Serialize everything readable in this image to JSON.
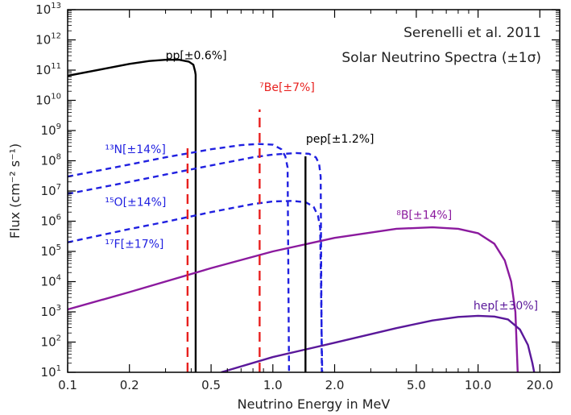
{
  "chart_data": {
    "type": "line",
    "title_lines": [
      "Serenelli et al. 2011",
      "Solar Neutrino Spectra (±1σ)"
    ],
    "xlabel": "Neutrino Energy in MeV",
    "ylabel": "Flux (cm⁻² s⁻¹)",
    "x_scale": "log",
    "y_scale": "log",
    "xlim": [
      0.1,
      25
    ],
    "ylim": [
      10,
      10000000000000.0
    ],
    "x_ticks": [
      {
        "value": 0.1,
        "label": "0.1"
      },
      {
        "value": 0.2,
        "label": "0.2"
      },
      {
        "value": 0.5,
        "label": "0.5"
      },
      {
        "value": 1.0,
        "label": "1.0"
      },
      {
        "value": 2.0,
        "label": "2.0"
      },
      {
        "value": 5.0,
        "label": "5.0"
      },
      {
        "value": 10.0,
        "label": "10.0"
      },
      {
        "value": 20.0,
        "label": "20.0"
      }
    ],
    "y_tick_exponents": [
      1,
      2,
      3,
      4,
      5,
      6,
      7,
      8,
      9,
      10,
      11,
      12,
      13
    ],
    "series": [
      {
        "name": "pp[±0.6%]",
        "color": "#000000",
        "dash": "solid",
        "points": [
          [
            0.1,
            65000000000.0
          ],
          [
            0.15,
            110000000000.0
          ],
          [
            0.2,
            160000000000.0
          ],
          [
            0.25,
            200000000000.0
          ],
          [
            0.3,
            220000000000.0
          ],
          [
            0.35,
            220000000000.0
          ],
          [
            0.39,
            190000000000.0
          ],
          [
            0.41,
            150000000000.0
          ],
          [
            0.418,
            90000000000.0
          ],
          [
            0.4205,
            70000000000.0
          ],
          [
            0.4205,
            10
          ]
        ]
      },
      {
        "name": "¹³N[±14%]",
        "color": "#2020e0",
        "dash": "dashed",
        "points": [
          [
            0.1,
            30000000.0
          ],
          [
            0.2,
            75000000.0
          ],
          [
            0.3,
            130000000.0
          ],
          [
            0.5,
            240000000.0
          ],
          [
            0.7,
            330000000.0
          ],
          [
            0.85,
            360000000.0
          ],
          [
            1.0,
            340000000.0
          ],
          [
            1.1,
            240000000.0
          ],
          [
            1.15,
            140000000.0
          ],
          [
            1.18,
            60000000.0
          ],
          [
            1.199,
            10
          ]
        ]
      },
      {
        "name": "¹⁵O[±14%]",
        "color": "#2020e0",
        "dash": "dashed",
        "points": [
          [
            0.1,
            8000000.0
          ],
          [
            0.2,
            20000000.0
          ],
          [
            0.3,
            35000000.0
          ],
          [
            0.5,
            70000000.0
          ],
          [
            0.8,
            130000000.0
          ],
          [
            1.0,
            160000000.0
          ],
          [
            1.3,
            180000000.0
          ],
          [
            1.5,
            170000000.0
          ],
          [
            1.62,
            130000000.0
          ],
          [
            1.68,
            80000000.0
          ],
          [
            1.71,
            30000000.0
          ],
          [
            1.732,
            10
          ]
        ]
      },
      {
        "name": "¹⁷F[±17%]",
        "color": "#2020e0",
        "dash": "dashed",
        "points": [
          [
            0.1,
            200000.0
          ],
          [
            0.2,
            550000.0
          ],
          [
            0.3,
            950000.0
          ],
          [
            0.5,
            2000000.0
          ],
          [
            0.8,
            3700000.0
          ],
          [
            1.0,
            4500000.0
          ],
          [
            1.25,
            4700000.0
          ],
          [
            1.45,
            4200000.0
          ],
          [
            1.58,
            3000000.0
          ],
          [
            1.66,
            1500000.0
          ],
          [
            1.7,
            600000.0
          ],
          [
            1.74,
            10
          ]
        ]
      },
      {
        "name": "⁸B[±14%]",
        "color": "#8b1a9e",
        "dash": "solid",
        "points": [
          [
            0.1,
            1200.0
          ],
          [
            0.2,
            4500.0
          ],
          [
            0.5,
            28000.0
          ],
          [
            1.0,
            100000.0
          ],
          [
            2.0,
            280000.0
          ],
          [
            4.0,
            560000.0
          ],
          [
            6.0,
            630000.0
          ],
          [
            8.0,
            560000.0
          ],
          [
            10.0,
            400000.0
          ],
          [
            12.0,
            180000.0
          ],
          [
            13.5,
            50000.0
          ],
          [
            14.5,
            10000.0
          ],
          [
            15.2,
            1000.0
          ],
          [
            15.6,
            10
          ]
        ]
      },
      {
        "name": "hep[±30%]",
        "color": "#5a189a",
        "dash": "solid",
        "points": [
          [
            0.56,
            10
          ],
          [
            1.0,
            32
          ],
          [
            2.0,
            95
          ],
          [
            4.0,
            290
          ],
          [
            6.0,
            520
          ],
          [
            8.0,
            680
          ],
          [
            10.0,
            740
          ],
          [
            12.0,
            700
          ],
          [
            14.0,
            560
          ],
          [
            16.0,
            260
          ],
          [
            17.5,
            80
          ],
          [
            18.4,
            20
          ],
          [
            18.77,
            10
          ]
        ]
      }
    ],
    "lines": [
      {
        "name": "⁷Be[±7%]",
        "energy": 0.862,
        "flux": 5000000000.0,
        "color": "#e8201e",
        "dash": "dashed"
      },
      {
        "name": "⁷Be 0.384",
        "energy": 0.384,
        "flux": 300000000.0,
        "color": "#e8201e",
        "dash": "dashed"
      },
      {
        "name": "pep[±1.2%]",
        "energy": 1.442,
        "flux": 140000000.0,
        "color": "#000000",
        "dash": "solid"
      }
    ],
    "labels": [
      {
        "text": "pp[±0.6%]",
        "x": 0.3,
        "y": 230000000000.0,
        "color": "#000000"
      },
      {
        "text": "⁷Be[±7%]",
        "x": 0.86,
        "y": 20000000000.0,
        "color": "#e8201e"
      },
      {
        "text": "pep[±1.2%]",
        "x": 1.45,
        "y": 400000000.0,
        "color": "#000000"
      },
      {
        "text": "¹³N[±14%]",
        "x": 0.152,
        "y": 180000000.0,
        "color": "#2020e0"
      },
      {
        "text": "¹⁵O[±14%]",
        "x": 0.152,
        "y": 3200000.0,
        "color": "#2020e0"
      },
      {
        "text": "¹⁷F[±17%]",
        "x": 0.152,
        "y": 130000.0,
        "color": "#2020e0"
      },
      {
        "text": "⁸B[±14%]",
        "x": 4.0,
        "y": 1200000.0,
        "color": "#8b1a9e"
      },
      {
        "text": "hep[±30%]",
        "x": 9.5,
        "y": 1200.0,
        "color": "#5a189a"
      }
    ]
  }
}
